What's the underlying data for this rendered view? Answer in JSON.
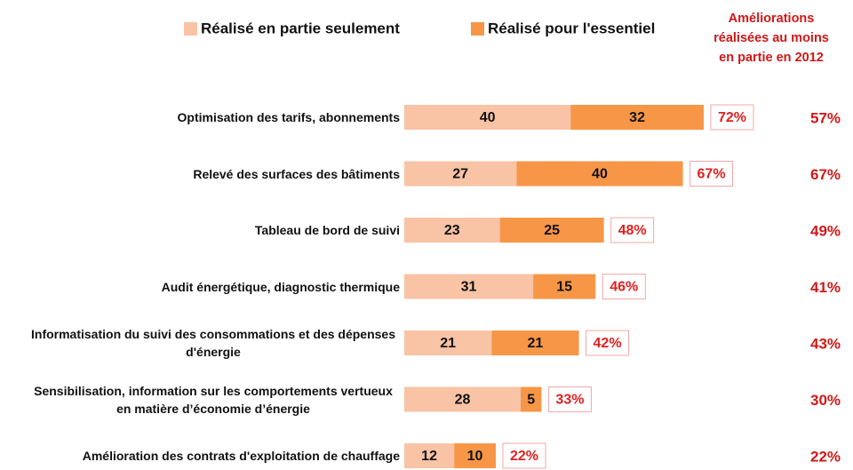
{
  "chart_data": {
    "type": "stacked-bar-horizontal",
    "categories": [
      "Optimisation des tarifs, abonnements",
      "Relevé des surfaces des bâtiments",
      "Tableau de bord de suivi",
      "Audit énergétique, diagnostic thermique",
      "Informatisation du suivi des consommations et des dépenses d'énergie",
      "Sensibilisation, information sur les comportements vertueux  en matière d’économie  d’énergie",
      "Amélioration des contrats d'exploitation de chauffage"
    ],
    "series": [
      {
        "name": "Réalisé en partie seulement",
        "color": "#f9c3a5",
        "values": [
          40,
          27,
          23,
          31,
          21,
          28,
          12
        ]
      },
      {
        "name": "Réalisé pour l'essentiel",
        "color": "#f79646",
        "values": [
          32,
          40,
          25,
          15,
          21,
          5,
          10
        ]
      }
    ],
    "totals": {
      "values": [
        72,
        67,
        48,
        46,
        42,
        33,
        22
      ],
      "value_labels": [
        "72%",
        "67%",
        "48%",
        "46%",
        "42%",
        "33%",
        "22%"
      ],
      "color": "#e02020"
    },
    "comparison": {
      "title": "Améliorations réalisées au moins en partie  en 2012",
      "values": [
        57,
        67,
        49,
        41,
        43,
        30,
        22
      ],
      "value_labels": [
        "57%",
        "67%",
        "49%",
        "41%",
        "43%",
        "30%",
        "22%"
      ],
      "color": "#d01818"
    },
    "xlim": [
      0,
      100
    ]
  }
}
